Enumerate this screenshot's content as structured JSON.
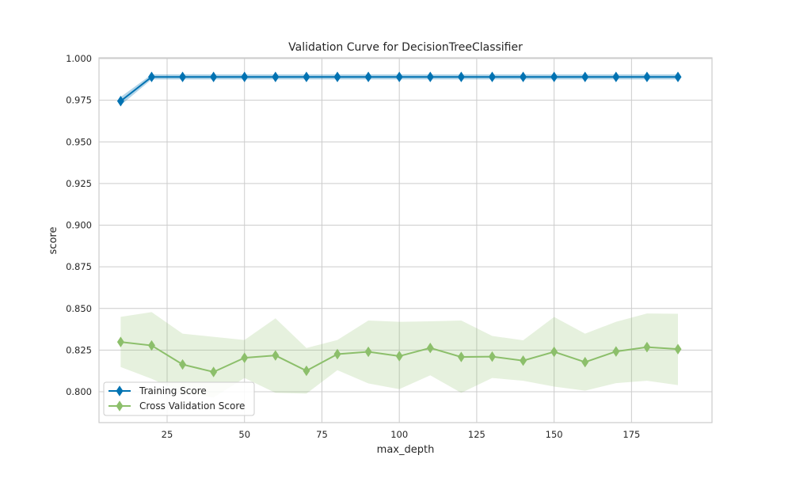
{
  "chart_data": {
    "type": "line",
    "title": "Validation Curve for DecisionTreeClassifier",
    "xlabel": "max_depth",
    "ylabel": "score",
    "xlim": [
      3,
      201
    ],
    "ylim": [
      0.7815,
      1.0005
    ],
    "xticks": [
      25,
      50,
      75,
      100,
      125,
      150,
      175
    ],
    "yticks": [
      0.8,
      0.825,
      0.85,
      0.875,
      0.9,
      0.925,
      0.95,
      0.975,
      1.0
    ],
    "ytick_labels": [
      "0.800",
      "0.825",
      "0.850",
      "0.875",
      "0.900",
      "0.925",
      "0.950",
      "0.975",
      "1.000"
    ],
    "grid": true,
    "legend_position": "lower-left",
    "x": [
      10,
      20,
      30,
      40,
      50,
      60,
      70,
      80,
      90,
      100,
      110,
      120,
      130,
      140,
      150,
      160,
      170,
      180,
      190
    ],
    "series": [
      {
        "name": "Training Score",
        "color": "#0072B2",
        "marker": "diamond",
        "values": [
          0.9745,
          0.989,
          0.989,
          0.989,
          0.989,
          0.989,
          0.989,
          0.989,
          0.989,
          0.989,
          0.989,
          0.989,
          0.989,
          0.989,
          0.989,
          0.989,
          0.989,
          0.989,
          0.989
        ],
        "band_upper": [
          0.977,
          0.9905,
          0.9905,
          0.9905,
          0.9905,
          0.9905,
          0.9905,
          0.9905,
          0.9905,
          0.9905,
          0.9905,
          0.9905,
          0.9905,
          0.9905,
          0.9905,
          0.9905,
          0.9905,
          0.9905,
          0.9905
        ],
        "band_lower": [
          0.972,
          0.9875,
          0.9875,
          0.9875,
          0.9875,
          0.9875,
          0.9875,
          0.9875,
          0.9875,
          0.9875,
          0.9875,
          0.9875,
          0.9875,
          0.9875,
          0.9875,
          0.9875,
          0.9875,
          0.9875,
          0.9875
        ]
      },
      {
        "name": "Cross Validation Score",
        "color": "#8CBF6B",
        "marker": "diamond",
        "values": [
          0.8299,
          0.8278,
          0.8164,
          0.8119,
          0.8204,
          0.8218,
          0.8126,
          0.8226,
          0.824,
          0.8214,
          0.8263,
          0.8209,
          0.8211,
          0.8187,
          0.824,
          0.8178,
          0.8242,
          0.8268,
          0.8256
        ],
        "band_upper": [
          0.845,
          0.8478,
          0.8349,
          0.833,
          0.8311,
          0.8441,
          0.8263,
          0.8311,
          0.8428,
          0.842,
          0.8423,
          0.8428,
          0.8335,
          0.8309,
          0.8449,
          0.8349,
          0.842,
          0.847,
          0.8468
        ],
        "band_lower": [
          0.8149,
          0.8078,
          0.7994,
          0.7966,
          0.8083,
          0.7994,
          0.7989,
          0.813,
          0.805,
          0.8016,
          0.8099,
          0.7994,
          0.8083,
          0.8066,
          0.8031,
          0.8007,
          0.8052,
          0.8066,
          0.804
        ]
      }
    ]
  }
}
